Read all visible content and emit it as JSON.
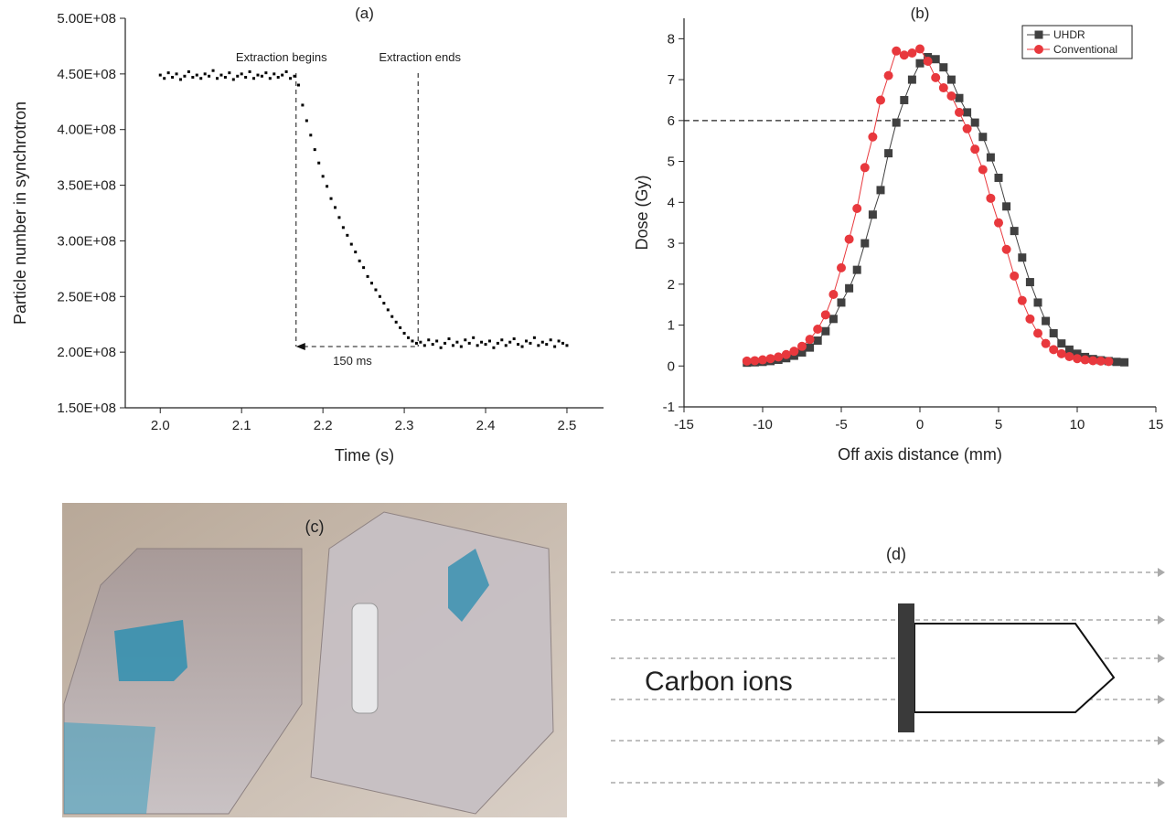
{
  "chart_data": [
    {
      "type": "scatter",
      "title": "(a)",
      "x_label": "Time (s)",
      "y_label": "Particle number in synchrotron",
      "color": "#000000",
      "x": [
        2,
        2.005,
        2.01,
        2.015,
        2.02,
        2.025,
        2.03,
        2.035,
        2.04,
        2.045,
        2.05,
        2.055,
        2.06,
        2.065,
        2.07,
        2.075,
        2.08,
        2.085,
        2.09,
        2.095,
        2.1,
        2.105,
        2.11,
        2.115,
        2.12,
        2.125,
        2.13,
        2.135,
        2.14,
        2.145,
        2.15,
        2.155,
        2.16,
        2.165,
        2.17,
        2.175,
        2.18,
        2.185,
        2.19,
        2.195,
        2.2,
        2.205,
        2.21,
        2.215,
        2.22,
        2.225,
        2.23,
        2.235,
        2.24,
        2.245,
        2.25,
        2.255,
        2.26,
        2.265,
        2.27,
        2.275,
        2.28,
        2.285,
        2.29,
        2.295,
        2.3,
        2.305,
        2.31,
        2.315,
        2.32,
        2.325,
        2.33,
        2.335,
        2.34,
        2.345,
        2.35,
        2.355,
        2.36,
        2.365,
        2.37,
        2.375,
        2.38,
        2.385,
        2.39,
        2.395,
        2.4,
        2.405,
        2.41,
        2.415,
        2.42,
        2.425,
        2.43,
        2.435,
        2.44,
        2.445,
        2.45,
        2.455,
        2.46,
        2.465,
        2.47,
        2.475,
        2.48,
        2.485,
        2.49,
        2.495,
        2.5
      ],
      "values": [
        449000000.0,
        446000000.0,
        451000000.0,
        447000000.0,
        450000000.0,
        445000000.0,
        448000000.0,
        452000000.0,
        447000000.0,
        449000000.0,
        446000000.0,
        450000000.0,
        448000000.0,
        453000000.0,
        446000000.0,
        449000000.0,
        447000000.0,
        451000000.0,
        445000000.0,
        448000000.0,
        450000000.0,
        447000000.0,
        452000000.0,
        446000000.0,
        449000000.0,
        448000000.0,
        451000000.0,
        446000000.0,
        450000000.0,
        447000000.0,
        449000000.0,
        452000000.0,
        446000000.0,
        448000000.0,
        440000000.0,
        422000000.0,
        408000000.0,
        395000000.0,
        382000000.0,
        370000000.0,
        358000000.0,
        349000000.0,
        338000000.0,
        330000000.0,
        321000000.0,
        312000000.0,
        305000000.0,
        297000000.0,
        290000000.0,
        282000000.0,
        276000000.0,
        268000000.0,
        262000000.0,
        256000000.0,
        250000000.0,
        244000000.0,
        238000000.0,
        232000000.0,
        227000000.0,
        222000000.0,
        217000000.0,
        213000000.0,
        210000000.0,
        208000000.0,
        209000000.0,
        206000000.0,
        211000000.0,
        207000000.0,
        210000000.0,
        204000000.0,
        208000000.0,
        212000000.0,
        206000000.0,
        209000000.0,
        205000000.0,
        211000000.0,
        208000000.0,
        213000000.0,
        206000000.0,
        209000000.0,
        207000000.0,
        210000000.0,
        204000000.0,
        208000000.0,
        211000000.0,
        206000000.0,
        209000000.0,
        212000000.0,
        207000000.0,
        205000000.0,
        210000000.0,
        208000000.0,
        213000000.0,
        206000000.0,
        209000000.0,
        207000000.0,
        211000000.0,
        205000000.0,
        210000000.0,
        208000000.0,
        206000000.0
      ],
      "xlim": [
        1.957,
        2.545
      ],
      "xticks": [
        {
          "value": 2,
          "label": "2.0"
        },
        2.1,
        2.2,
        2.3,
        2.4,
        2.5
      ],
      "ylim": [
        150000000,
        500000000
      ],
      "yticks": [
        {
          "value": 150000000,
          "label": "1.50E+08"
        },
        {
          "value": 200000000,
          "label": "2.00E+08"
        },
        {
          "value": 250000000,
          "label": "2.50E+08"
        },
        {
          "value": 300000000,
          "label": "3.00E+08"
        },
        {
          "value": 350000000,
          "label": "3.50E+08"
        },
        {
          "value": 400000000,
          "label": "4.00E+08"
        },
        {
          "value": 450000000,
          "label": "4.50E+08"
        },
        {
          "value": 500000000,
          "label": "5.00E+08"
        }
      ],
      "markers": [
        {
          "label": "Extraction begins",
          "x": 2.167
        },
        {
          "label": "Extraction ends",
          "x": 2.317
        }
      ],
      "span": {
        "label": "150 ms",
        "y": 205000000
      }
    },
    {
      "type": "line",
      "title": "(b)",
      "x_label": "Off axis distance (mm)",
      "y_label": "Dose (Gy)",
      "legend": "upper right",
      "series": [
        {
          "name": "UHDR",
          "color": "#404040",
          "marker": "square",
          "x": [
            -11,
            -10.5,
            -10,
            -9.5,
            -9,
            -8.5,
            -8,
            -7.5,
            -7,
            -6.5,
            -6,
            -5.5,
            -5,
            -4.5,
            -4,
            -3.5,
            -3,
            -2.5,
            -2,
            -1.5,
            -1,
            -0.5,
            0,
            0.5,
            1,
            1.5,
            2,
            2.5,
            3,
            3.5,
            4,
            4.5,
            5,
            5.5,
            6,
            6.5,
            7,
            7.5,
            8,
            8.5,
            9,
            9.5,
            10,
            10.5,
            11,
            11.5,
            12,
            12.5,
            13
          ],
          "values": [
            0.08,
            0.09,
            0.1,
            0.12,
            0.15,
            0.19,
            0.25,
            0.33,
            0.45,
            0.62,
            0.85,
            1.15,
            1.55,
            1.9,
            2.35,
            3.0,
            3.7,
            4.3,
            5.2,
            5.95,
            6.5,
            7.0,
            7.4,
            7.55,
            7.5,
            7.3,
            7.0,
            6.55,
            6.2,
            5.95,
            5.6,
            5.1,
            4.6,
            3.9,
            3.3,
            2.65,
            2.05,
            1.55,
            1.1,
            0.8,
            0.55,
            0.4,
            0.3,
            0.22,
            0.17,
            0.14,
            0.12,
            0.1,
            0.09
          ]
        },
        {
          "name": "Conventional",
          "color": "#e8383d",
          "marker": "circle",
          "x": [
            -11,
            -10.5,
            -10,
            -9.5,
            -9,
            -8.5,
            -8,
            -7.5,
            -7,
            -6.5,
            -6,
            -5.5,
            -5,
            -4.5,
            -4,
            -3.5,
            -3,
            -2.5,
            -2,
            -1.5,
            -1,
            -0.5,
            0,
            0.5,
            1,
            1.5,
            2,
            2.5,
            3,
            3.5,
            4,
            4.5,
            5,
            5.5,
            6,
            6.5,
            7,
            7.5,
            8,
            8.5,
            9,
            9.5,
            10,
            10.5,
            11,
            11.5,
            12
          ],
          "values": [
            0.12,
            0.13,
            0.15,
            0.18,
            0.22,
            0.28,
            0.36,
            0.48,
            0.65,
            0.9,
            1.25,
            1.75,
            2.4,
            3.1,
            3.85,
            4.85,
            5.6,
            6.5,
            7.1,
            7.7,
            7.6,
            7.65,
            7.75,
            7.45,
            7.05,
            6.8,
            6.6,
            6.2,
            5.8,
            5.3,
            4.8,
            4.1,
            3.5,
            2.85,
            2.2,
            1.6,
            1.15,
            0.8,
            0.55,
            0.4,
            0.3,
            0.23,
            0.18,
            0.15,
            0.13,
            0.12,
            0.11
          ]
        }
      ],
      "xlim": [
        -15,
        15
      ],
      "xticks": [
        -15,
        -10,
        -5,
        0,
        5,
        10,
        15
      ],
      "ylim": [
        -1,
        8.5
      ],
      "yticks": [
        -1,
        0,
        1,
        2,
        3,
        4,
        5,
        6,
        7,
        8
      ],
      "hline": {
        "y": 6,
        "x_end": 3
      }
    }
  ],
  "panel_c": {
    "label": "(c)"
  },
  "panel_d": {
    "label": "(d)",
    "text": "Carbon ions"
  }
}
